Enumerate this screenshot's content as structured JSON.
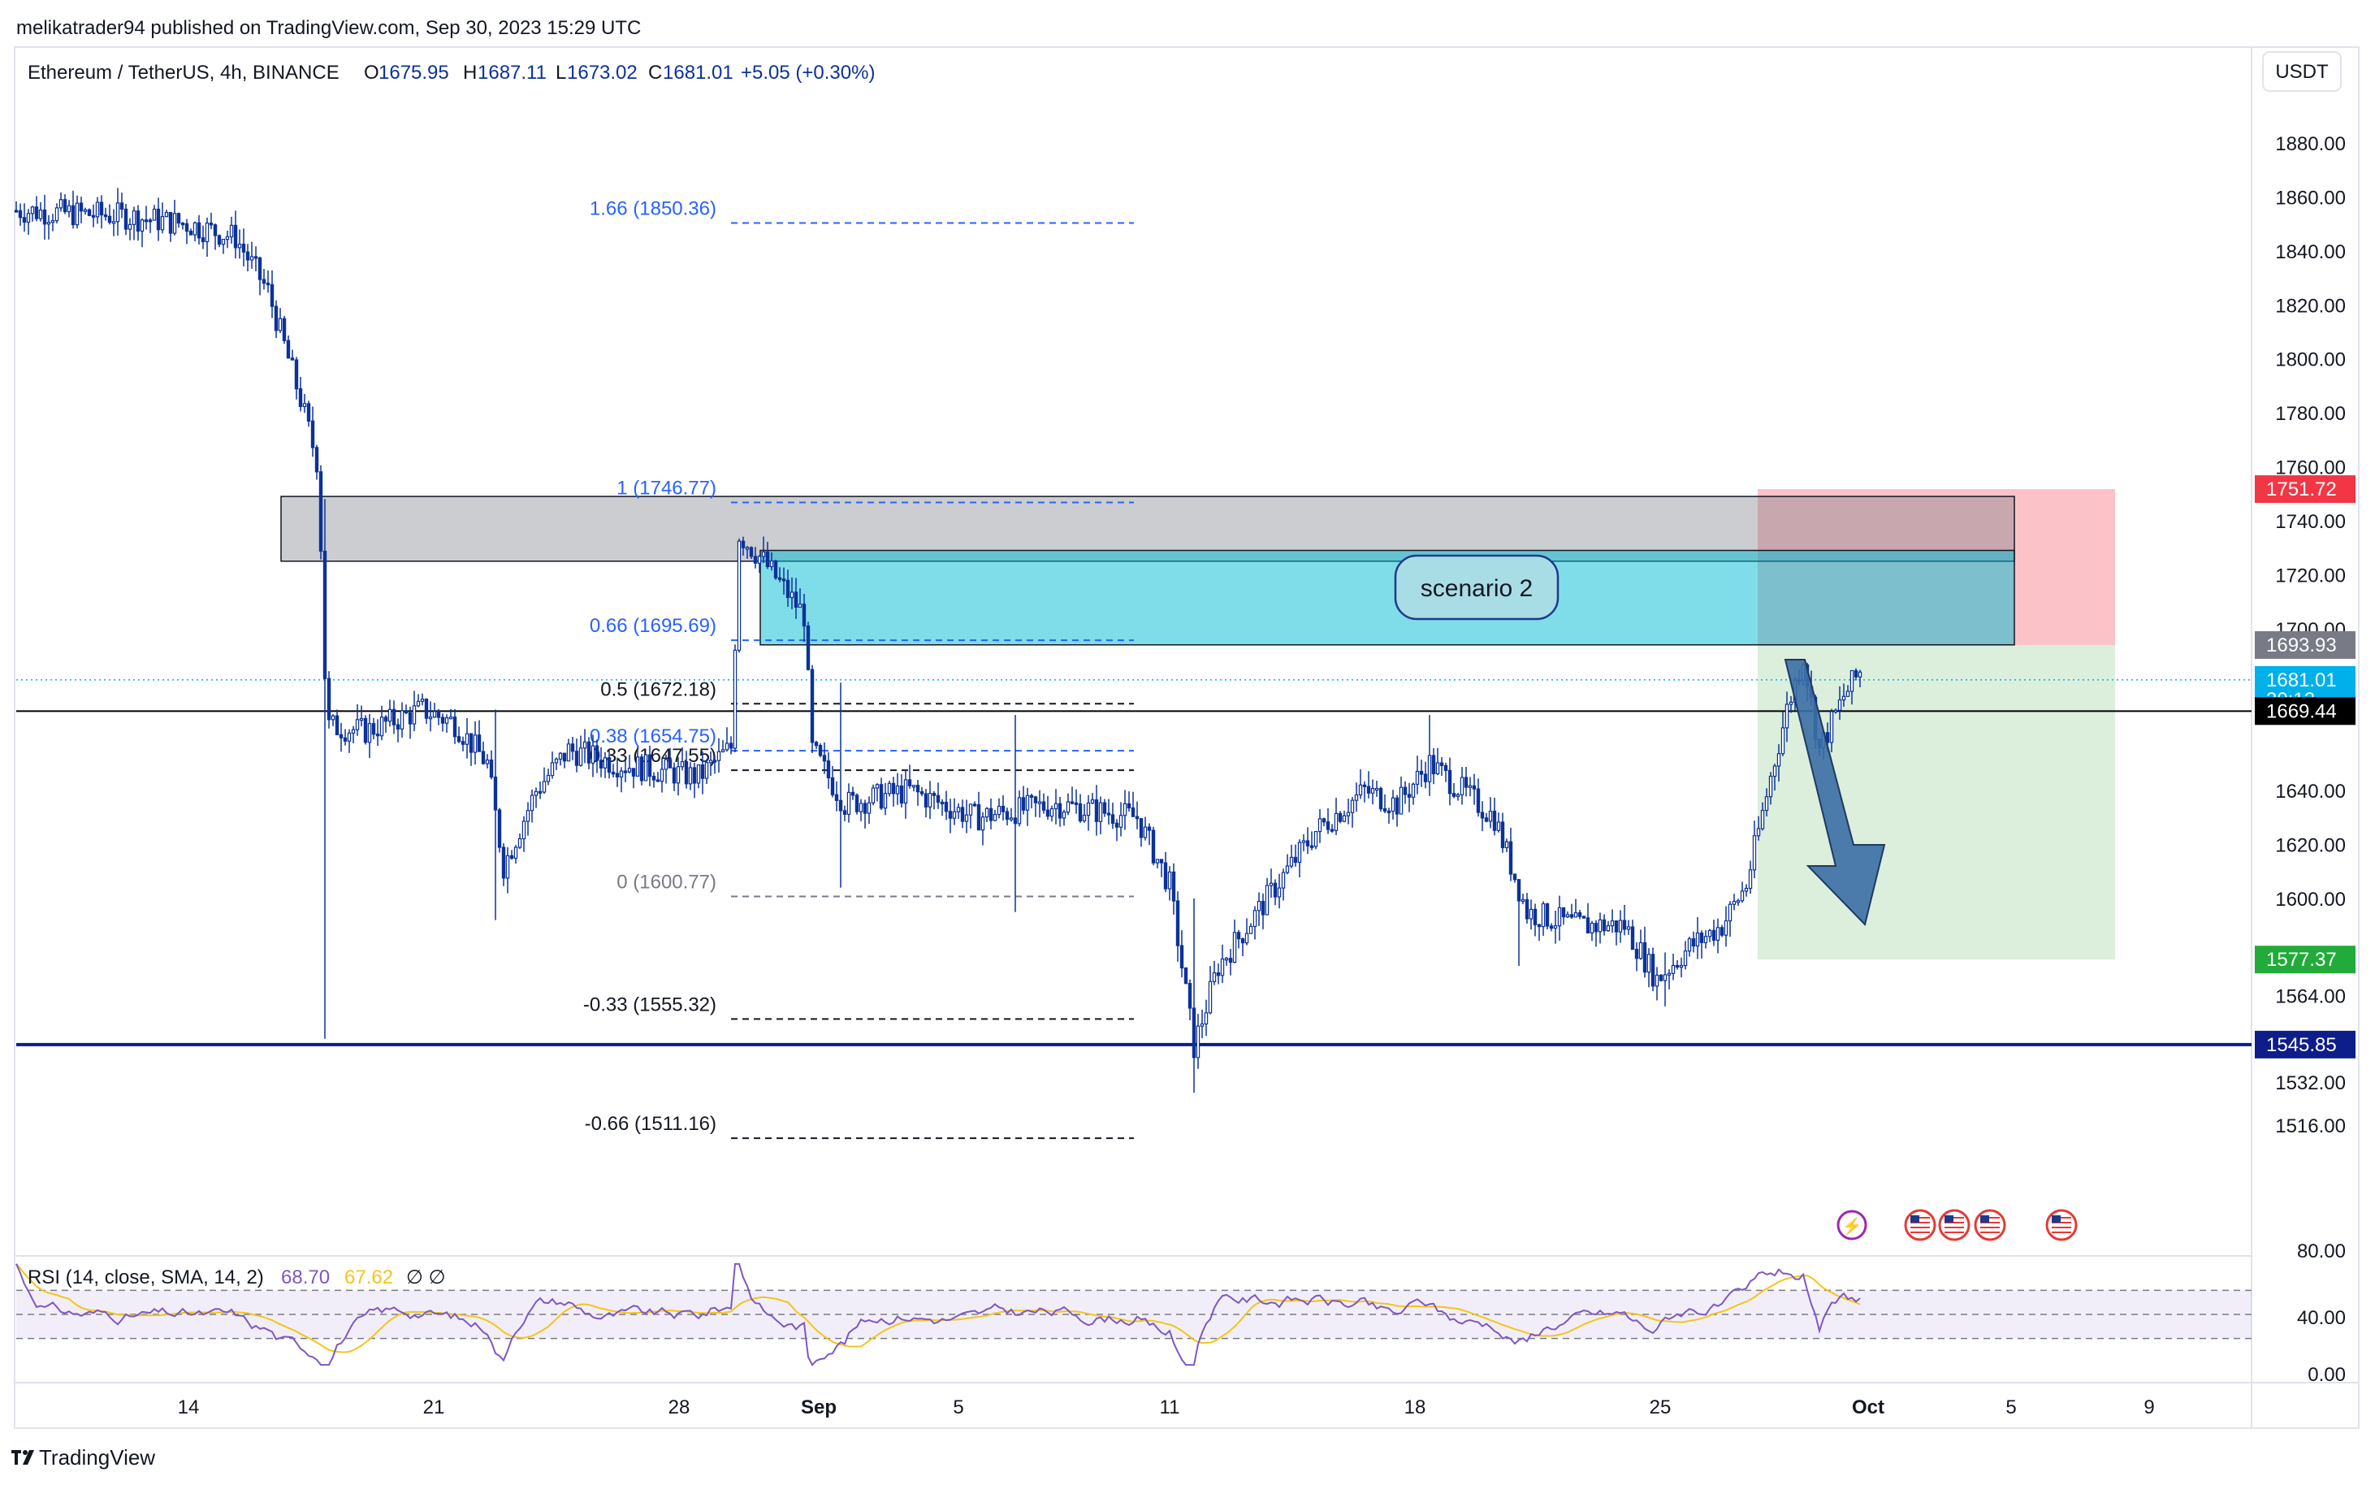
{
  "header": {
    "publisher_line": "melikatrader94 published on TradingView.com, Sep 30, 2023 15:29 UTC"
  },
  "legend": {
    "symbol": "Ethereum / TetherUS, 4h, BINANCE",
    "o_label": "O",
    "o_value": "1675.95",
    "h_label": "H",
    "h_value": "1687.11",
    "l_label": "L",
    "l_value": "1673.02",
    "c_label": "C",
    "c_value": "1681.01",
    "change": "+5.05 (+0.30%)"
  },
  "currency_button": "USDT",
  "footer": {
    "brand": "TradingView"
  },
  "colors": {
    "up": "#0c3299",
    "down": "#0c3299",
    "fib_blue": "#2962ff",
    "fib_dark": "#131722",
    "zone_grey": "#9598a1",
    "zone_cyan": "#00bcd4",
    "target_green": "#c8e6c9",
    "stop_red": "#f7a8b0",
    "support_navy": "#0d1d8a",
    "arrow": "#3a6ea5",
    "rsi_line": "#7e57c2",
    "rsi_sma": "#f5c518"
  },
  "chart_data": {
    "type": "candlestick",
    "timeframe": "4h",
    "ylim": [
      1504,
      1890
    ],
    "y_ticks": [
      "1880.00",
      "1860.00",
      "1840.00",
      "1820.00",
      "1800.00",
      "1780.00",
      "1760.00",
      "1740.00",
      "1720.00",
      "1700.00",
      "1640.00",
      "1620.00",
      "1600.00",
      "1564.00",
      "1532.00",
      "1516.00"
    ],
    "x_ticks": [
      "14",
      "21",
      "28",
      "Sep",
      "5",
      "11",
      "18",
      "25",
      "Oct",
      "5",
      "9"
    ],
    "price_labels": [
      {
        "text": "1751.72",
        "price": 1751.72,
        "bg": "#f23645"
      },
      {
        "text": "1693.93",
        "price": 1693.93,
        "bg": "#787b86"
      },
      {
        "text": "1681.01",
        "price": 1681.01,
        "bg": "#00b0ea",
        "sub": "30:12"
      },
      {
        "text": "1669.44",
        "price": 1669.44,
        "bg": "#000000"
      },
      {
        "text": "1577.37",
        "price": 1577.37,
        "bg": "#22ab3a"
      },
      {
        "text": "1545.85",
        "price": 1545.85,
        "bg": "#0d1d8a"
      }
    ],
    "fib_levels": [
      {
        "label": "1.66 (1850.36)",
        "price": 1850.36,
        "style": "blue"
      },
      {
        "label": "1 (1746.77)",
        "price": 1746.77,
        "style": "blue"
      },
      {
        "label": "0.66 (1695.69)",
        "price": 1695.69,
        "style": "blue"
      },
      {
        "label": "0.5 (1672.18)",
        "price": 1672.18,
        "style": "dark"
      },
      {
        "label": "0.38 (1654.75)",
        "price": 1654.75,
        "style": "blue"
      },
      {
        "label": "0.33 (1647.55)",
        "price": 1647.55,
        "style": "dark"
      },
      {
        "label": "0 (1600.77)",
        "price": 1600.77,
        "style": "grey"
      },
      {
        "label": "-0.33 (1555.32)",
        "price": 1555.32,
        "style": "dark"
      },
      {
        "label": "-0.66 (1511.16)",
        "price": 1511.16,
        "style": "dark"
      }
    ],
    "annotation": "scenario 2",
    "horizontal_lines": [
      1669.44,
      1545.85
    ],
    "last_price": 1681.01,
    "rsi": {
      "label": "RSI (14, close, SMA, 14, 2)",
      "value": "68.70",
      "sma_value": "67.62",
      "extra": "∅ ∅",
      "ticks": [
        "80.00",
        "40.00",
        "0.00"
      ],
      "ylim": [
        0,
        100
      ],
      "bands": [
        70,
        50,
        30
      ]
    }
  }
}
